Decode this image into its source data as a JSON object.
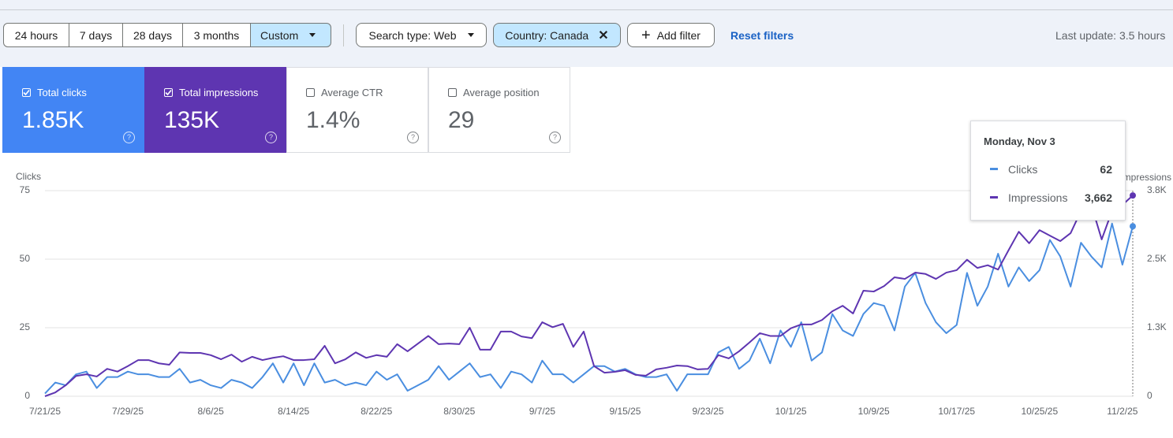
{
  "toolbar": {
    "ranges": [
      "24 hours",
      "7 days",
      "28 days",
      "3 months",
      "Custom"
    ],
    "filters": [
      "Search type: Web",
      "Country: Canada"
    ],
    "add_filter": "Add filter",
    "reset": "Reset filters",
    "last_update": "Last update: 3.5 hours"
  },
  "cards": [
    {
      "label": "Total clicks",
      "value": "1.85K",
      "checked": true,
      "color": "#4285f4"
    },
    {
      "label": "Total impressions",
      "value": "135K",
      "checked": true,
      "color": "#5e35b1"
    },
    {
      "label": "Average CTR",
      "value": "1.4%",
      "checked": false
    },
    {
      "label": "Average position",
      "value": "29",
      "checked": false
    }
  ],
  "chart_data": {
    "type": "line",
    "y_label": "Clicks",
    "y2_label": "Impressions",
    "x": [
      "7/21/25",
      "7/22/25",
      "7/23/25",
      "7/24/25",
      "7/25/25",
      "7/26/25",
      "7/27/25",
      "7/28/25",
      "7/29/25",
      "7/30/25",
      "7/31/25",
      "8/1/25",
      "8/2/25",
      "8/3/25",
      "8/4/25",
      "8/5/25",
      "8/6/25",
      "8/7/25",
      "8/8/25",
      "8/9/25",
      "8/10/25",
      "8/11/25",
      "8/12/25",
      "8/13/25",
      "8/14/25",
      "8/15/25",
      "8/16/25",
      "8/17/25",
      "8/18/25",
      "8/19/25",
      "8/20/25",
      "8/21/25",
      "8/22/25",
      "8/23/25",
      "8/24/25",
      "8/25/25",
      "8/26/25",
      "8/27/25",
      "8/28/25",
      "8/29/25",
      "8/30/25",
      "8/31/25",
      "9/1/25",
      "9/2/25",
      "9/3/25",
      "9/4/25",
      "9/5/25",
      "9/6/25",
      "9/7/25",
      "9/8/25",
      "9/9/25",
      "9/10/25",
      "9/11/25",
      "9/12/25",
      "9/13/25",
      "9/14/25",
      "9/15/25",
      "9/16/25",
      "9/17/25",
      "9/18/25",
      "9/19/25",
      "9/20/25",
      "9/21/25",
      "9/22/25",
      "9/23/25",
      "9/24/25",
      "9/25/25",
      "9/26/25",
      "9/27/25",
      "9/28/25",
      "9/29/25",
      "9/30/25",
      "10/1/25",
      "10/2/25",
      "10/3/25",
      "10/4/25",
      "10/5/25",
      "10/6/25",
      "10/7/25",
      "10/8/25",
      "10/9/25",
      "10/10/25",
      "10/11/25",
      "10/12/25",
      "10/13/25",
      "10/14/25",
      "10/15/25",
      "10/16/25",
      "10/17/25",
      "10/18/25",
      "10/19/25",
      "10/20/25",
      "10/21/25",
      "10/22/25",
      "10/23/25",
      "10/24/25",
      "10/25/25",
      "10/26/25",
      "10/27/25",
      "10/28/25",
      "10/29/25",
      "10/30/25",
      "10/31/25",
      "11/1/25",
      "11/2/25",
      "11/3/25"
    ],
    "xticks": [
      "7/21/25",
      "7/29/25",
      "8/6/25",
      "8/14/25",
      "8/22/25",
      "8/30/25",
      "9/7/25",
      "9/15/25",
      "9/23/25",
      "10/1/25",
      "10/9/25",
      "10/17/25",
      "10/25/25",
      "11/2/25"
    ],
    "ylim": [
      0,
      75
    ],
    "yticks": [
      0,
      25,
      50,
      75
    ],
    "y2lim": [
      0,
      3750
    ],
    "y2ticks": [
      0,
      {
        "value": 1250,
        "label": "1.3K"
      },
      {
        "value": 2500,
        "label": "2.5K"
      },
      {
        "value": 3750,
        "label": "3.8K"
      }
    ],
    "grid": true,
    "series": [
      {
        "name": "Clicks",
        "color": "#4a8ee0",
        "values": [
          1,
          5,
          4,
          8,
          9,
          3,
          7,
          7,
          9,
          8,
          8,
          7,
          7,
          10,
          5,
          6,
          4,
          3,
          6,
          5,
          3,
          7,
          12,
          5,
          12,
          4,
          12,
          5,
          6,
          4,
          5,
          4,
          9,
          6,
          8,
          2,
          4,
          6,
          11,
          6,
          9,
          12,
          7,
          8,
          3,
          9,
          8,
          5,
          13,
          8,
          8,
          5,
          8,
          11,
          11,
          9,
          10,
          8,
          7,
          7,
          8,
          2,
          8,
          8,
          8,
          16,
          18,
          10,
          13,
          21,
          12,
          24,
          18,
          27,
          13,
          16,
          30,
          24,
          22,
          30,
          34,
          33,
          24,
          40,
          45,
          34,
          27,
          23,
          26,
          45,
          33,
          40,
          52,
          40,
          47,
          42,
          46,
          57,
          51,
          40,
          56,
          51,
          47,
          63,
          48,
          62
        ]
      },
      {
        "name": "Impressions",
        "color": "#5e35b1",
        "axis": "y2",
        "values": [
          0,
          70,
          200,
          370,
          400,
          360,
          500,
          450,
          550,
          660,
          660,
          600,
          575,
          800,
          790,
          790,
          750,
          675,
          760,
          630,
          720,
          660,
          700,
          730,
          660,
          660,
          675,
          920,
          600,
          675,
          800,
          700,
          750,
          720,
          950,
          820,
          960,
          1100,
          950,
          960,
          950,
          1250,
          850,
          850,
          1180,
          1180,
          1090,
          1060,
          1350,
          1260,
          1320,
          900,
          1180,
          550,
          430,
          445,
          475,
          390,
          375,
          490,
          520,
          560,
          550,
          490,
          500,
          750,
          690,
          820,
          980,
          1150,
          1100,
          1100,
          1240,
          1310,
          1310,
          1390,
          1550,
          1650,
          1510,
          1925,
          1910,
          2010,
          2170,
          2140,
          2255,
          2230,
          2140,
          2255,
          2300,
          2490,
          2340,
          2390,
          2310,
          2660,
          3000,
          2790,
          3030,
          2930,
          2830,
          2975,
          3380,
          3490,
          2860,
          3380,
          3490,
          3662
        ]
      }
    ]
  },
  "tooltip": {
    "title": "Monday, Nov 3",
    "rows": [
      {
        "value": 62
      },
      {
        "value": 3662,
        "label": "3,662"
      }
    ]
  }
}
